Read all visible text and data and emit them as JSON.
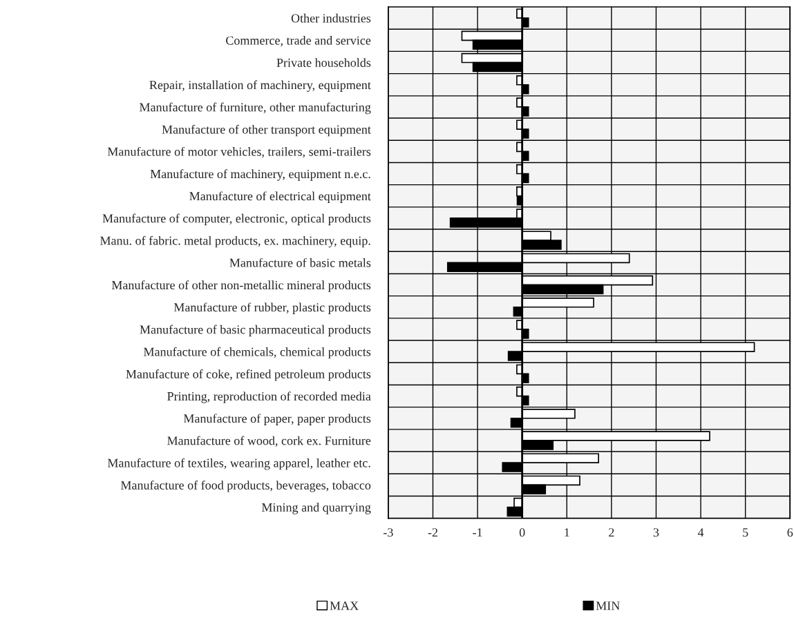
{
  "chart_data": {
    "type": "bar",
    "orientation": "horizontal",
    "categories": [
      "Other industries",
      "Commerce, trade and service",
      "Private households",
      "Repair, installation of machinery, equipment",
      "Manufacture of furniture, other manufacturing",
      "Manufacture of other transport equipment",
      "Manufacture of motor vehicles, trailers, semi-trailers",
      "Manufacture of machinery, equipment n.e.c.",
      "Manufacture of electrical equipment",
      "Manufacture of computer, electronic, optical products",
      "Manu. of fabric. metal products, ex. machinery, equip.",
      "Manufacture of basic metals",
      "Manufacture of other non-metallic mineral products",
      "Manufacture of rubber, plastic products",
      "Manufacture of basic pharmaceutical products",
      "Manufacture of chemicals, chemical products",
      "Manufacture of coke, refined petroleum products",
      "Printing, reproduction of recorded media",
      "Manufacture of paper, paper products",
      "Manufacture of wood, cork ex. Furniture",
      "Manufacture of textiles, wearing apparel, leather etc.",
      "Manufacture of food products, beverages, tobacco",
      "Mining and quarrying"
    ],
    "series": [
      {
        "name": "MAX",
        "color": "#ffffff",
        "values": [
          -0.12,
          -1.35,
          -1.35,
          -0.12,
          -0.12,
          -0.12,
          -0.12,
          -0.12,
          -0.12,
          -0.12,
          0.64,
          2.4,
          2.92,
          1.6,
          -0.12,
          5.2,
          -0.12,
          -0.12,
          1.18,
          4.2,
          1.71,
          1.29,
          -0.18
        ]
      },
      {
        "name": "MIN",
        "color": "#000000",
        "values": [
          0.14,
          -1.1,
          -1.1,
          0.14,
          0.14,
          0.14,
          0.14,
          0.14,
          -0.11,
          -1.61,
          0.87,
          -1.67,
          1.81,
          -0.19,
          0.14,
          -0.31,
          0.14,
          0.14,
          -0.25,
          0.69,
          -0.44,
          0.52,
          -0.33
        ]
      }
    ],
    "xlim": [
      -3,
      6
    ],
    "xticks": [
      -3,
      -2,
      -1,
      0,
      1,
      2,
      3,
      4,
      5,
      6
    ],
    "grid": true,
    "legend": "bottom"
  }
}
